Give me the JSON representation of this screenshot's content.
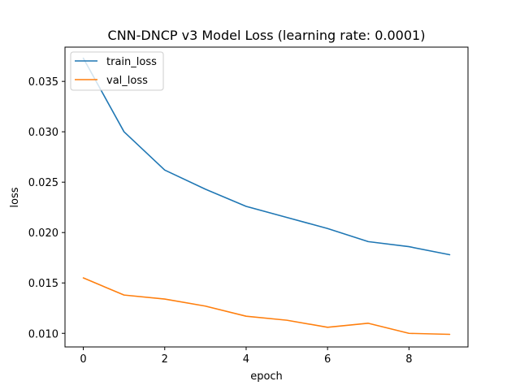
{
  "chart_data": {
    "type": "line",
    "title": "CNN-DNCP v3 Model Loss (learning rate: 0.0001)",
    "xlabel": "epoch",
    "ylabel": "loss",
    "x": [
      0,
      1,
      2,
      3,
      4,
      5,
      6,
      7,
      8,
      9
    ],
    "xlim": [
      -0.45,
      9.45
    ],
    "ylim": [
      0.00865,
      0.0384
    ],
    "xticks": [
      0,
      2,
      4,
      6,
      8
    ],
    "yticks": [
      0.01,
      0.015,
      0.02,
      0.025,
      0.03,
      0.035
    ],
    "ytick_labels": [
      "0.010",
      "0.015",
      "0.020",
      "0.025",
      "0.030",
      "0.035"
    ],
    "grid": false,
    "legend_position": "upper left",
    "series": [
      {
        "name": "train_loss",
        "color": "#1f77b4",
        "values": [
          0.0373,
          0.03,
          0.0262,
          0.0243,
          0.0226,
          0.0215,
          0.0204,
          0.0191,
          0.0186,
          0.0178
        ]
      },
      {
        "name": "val_loss",
        "color": "#ff7f0e",
        "values": [
          0.0155,
          0.0138,
          0.0134,
          0.0127,
          0.0117,
          0.0113,
          0.0106,
          0.011,
          0.01,
          0.0099
        ]
      }
    ]
  }
}
